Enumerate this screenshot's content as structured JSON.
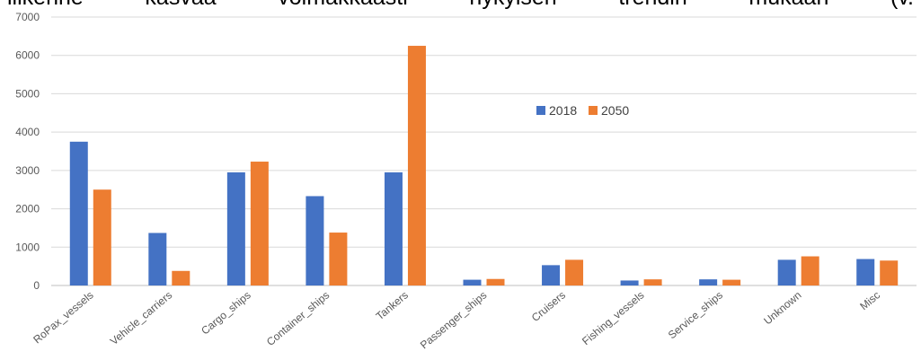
{
  "header_fragment": [
    "liikenne",
    "kasvaa",
    "voimakkaasti",
    "nykyisen",
    "trendin",
    "mukaan",
    "(v."
  ],
  "chart_data": {
    "type": "bar",
    "title": "",
    "xlabel": "",
    "ylabel": "",
    "ylim": [
      0,
      7000
    ],
    "yticks": [
      0,
      1000,
      2000,
      3000,
      4000,
      5000,
      6000,
      7000
    ],
    "grid": true,
    "legend_position": "center-right",
    "categories": [
      "RoPax_vessels",
      "Vehicle_carriers",
      "Cargo_ships",
      "Container_ships",
      "Tankers",
      "Passenger_ships",
      "Cruisers",
      "Fishing_vessels",
      "Service_ships",
      "Unknown",
      "Misc"
    ],
    "series": [
      {
        "name": "2018",
        "color": "#4472c4",
        "values": [
          3750,
          1370,
          2950,
          2330,
          2950,
          150,
          530,
          130,
          160,
          670,
          690
        ]
      },
      {
        "name": "2050",
        "color": "#ed7d31",
        "values": [
          2500,
          380,
          3230,
          1380,
          6250,
          170,
          670,
          160,
          150,
          760,
          650
        ]
      }
    ]
  }
}
